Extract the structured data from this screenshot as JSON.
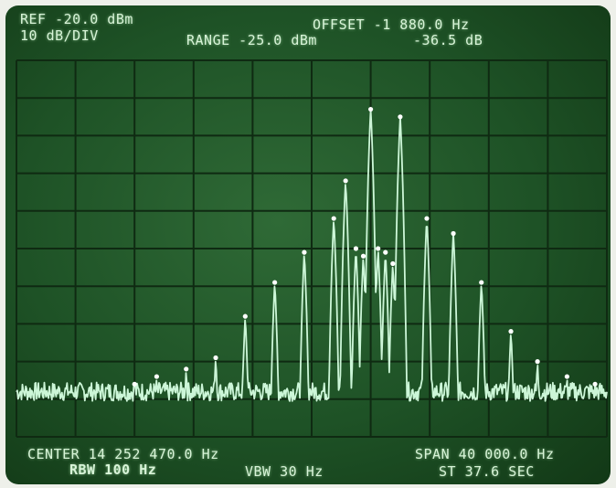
{
  "colors": {
    "screen_bg": "#1e5226",
    "graticule": "#0f2a12",
    "trace": "#d6ffe2",
    "text": "#d8f4d8"
  },
  "top_readouts": {
    "ref": "REF -20.0 dBm",
    "scale": "10 dB/DIV",
    "range": "RANGE -25.0 dBm",
    "offset": "OFFSET -1 880.0 Hz",
    "marker_delta": "-36.5 dB"
  },
  "bottom_readouts": {
    "center": "CENTER 14 252 470.0 Hz",
    "span": "SPAN 40 000.0 Hz",
    "rbw": "RBW 100 Hz",
    "vbw": "VBW 30 Hz",
    "sweep_time": "ST 37.6 SEC"
  },
  "graticule": {
    "divisions_x": 10,
    "divisions_y": 10
  },
  "chart_data": {
    "type": "line",
    "x_units": "Hz offset from center",
    "y_units": "dBm",
    "xlim": [
      -20000,
      20000
    ],
    "ylim": [
      -120,
      -20
    ],
    "noise_floor_dbm": -108,
    "peaks": [
      {
        "x": -12000,
        "y": -106
      },
      {
        "x": -10500,
        "y": -104
      },
      {
        "x": -8500,
        "y": -102
      },
      {
        "x": -6500,
        "y": -99
      },
      {
        "x": -4500,
        "y": -88
      },
      {
        "x": -2500,
        "y": -79
      },
      {
        "x": -500,
        "y": -71
      },
      {
        "x": 1500,
        "y": -62
      },
      {
        "x": 2300,
        "y": -52
      },
      {
        "x": 3000,
        "y": -70
      },
      {
        "x": 3500,
        "y": -72
      },
      {
        "x": 4000,
        "y": -33
      },
      {
        "x": 4500,
        "y": -70
      },
      {
        "x": 5000,
        "y": -71
      },
      {
        "x": 5500,
        "y": -74
      },
      {
        "x": 6000,
        "y": -35
      },
      {
        "x": 7800,
        "y": -62
      },
      {
        "x": 9600,
        "y": -66
      },
      {
        "x": 11500,
        "y": -79
      },
      {
        "x": 13500,
        "y": -92
      },
      {
        "x": 15300,
        "y": -100
      },
      {
        "x": 17300,
        "y": -104
      },
      {
        "x": 19200,
        "y": -106
      }
    ]
  }
}
